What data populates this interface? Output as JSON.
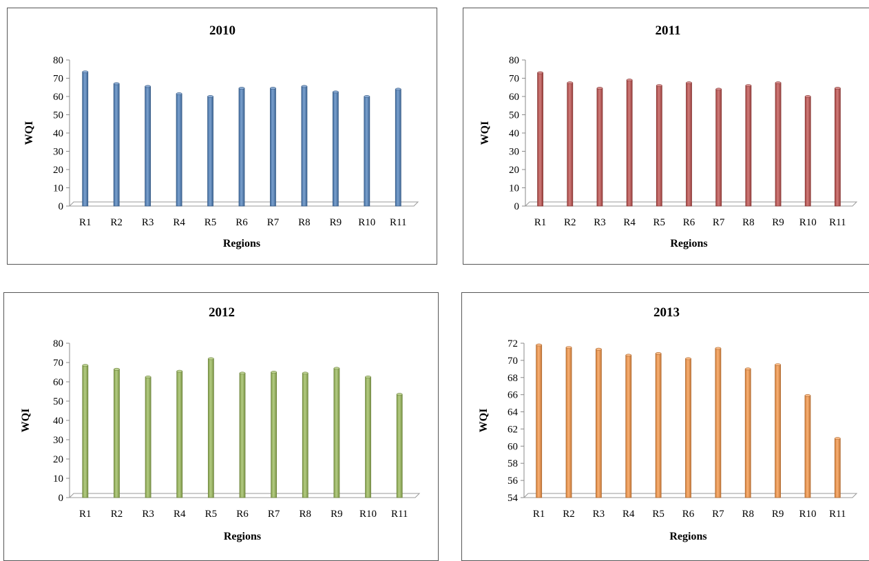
{
  "charts": [
    {
      "type": "bar",
      "title": "2010",
      "xlabel": "Regions",
      "ylabel": "WQI",
      "categories": [
        "R1",
        "R2",
        "R3",
        "R4",
        "R5",
        "R6",
        "R7",
        "R8",
        "R9",
        "R10",
        "R11"
      ],
      "values": [
        73.5,
        67,
        65.5,
        61.5,
        60,
        64.5,
        64.5,
        65.5,
        62.5,
        60,
        64
      ],
      "ylim": [
        0,
        80
      ],
      "yticks": [
        "0",
        "10",
        "20",
        "30",
        "40",
        "50",
        "60",
        "70",
        "80"
      ],
      "color": "#4f81bd"
    },
    {
      "type": "bar",
      "title": "2011",
      "xlabel": "Regions",
      "ylabel": "WQI",
      "categories": [
        "R1",
        "R2",
        "R3",
        "R4",
        "R5",
        "R6",
        "R7",
        "R8",
        "R9",
        "R10",
        "R11"
      ],
      "values": [
        73,
        67.5,
        64.5,
        69,
        66,
        67.5,
        64,
        66,
        67.5,
        60,
        64.5
      ],
      "ylim": [
        0,
        80
      ],
      "yticks": [
        "0",
        "10",
        "20",
        "30",
        "40",
        "50",
        "60",
        "70",
        "80"
      ],
      "color": "#c0504d"
    },
    {
      "type": "bar",
      "title": "2012",
      "xlabel": "Regions",
      "ylabel": "WQI",
      "categories": [
        "R1",
        "R2",
        "R3",
        "R4",
        "R5",
        "R6",
        "R7",
        "R8",
        "R9",
        "R10",
        "R11"
      ],
      "values": [
        68.5,
        66.5,
        62.5,
        65.5,
        72,
        64.5,
        65,
        64.5,
        67,
        62.5,
        53.5
      ],
      "ylim": [
        0,
        80
      ],
      "yticks": [
        "0",
        "10",
        "20",
        "30",
        "40",
        "50",
        "60",
        "70",
        "80"
      ],
      "color": "#9bbb59"
    },
    {
      "type": "bar",
      "title": "2013",
      "xlabel": "Regions",
      "ylabel": "WQI",
      "categories": [
        "R1",
        "R2",
        "R3",
        "R4",
        "R5",
        "R6",
        "R7",
        "R8",
        "R9",
        "R10",
        "R11"
      ],
      "values": [
        71.8,
        71.5,
        71.3,
        70.6,
        70.8,
        70.2,
        71.4,
        69,
        69.5,
        65.9,
        60.9
      ],
      "ylim": [
        54,
        72
      ],
      "yticks": [
        "54",
        "56",
        "58",
        "60",
        "62",
        "64",
        "66",
        "68",
        "70",
        "72"
      ],
      "color": "#f79646"
    }
  ]
}
